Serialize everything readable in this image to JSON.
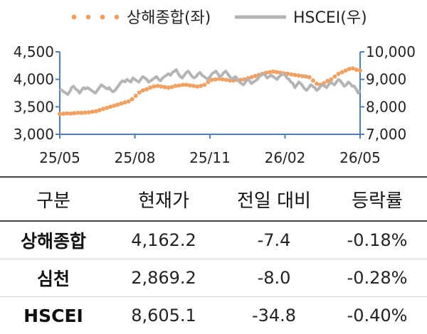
{
  "colors": {
    "shanghai": "#F0A060",
    "hscei": "#B4B4B4",
    "axis": "#4F7FB8",
    "text": "#222222"
  },
  "chart_data": {
    "type": "line",
    "legend_position": "top",
    "grid": false,
    "xticks": [
      "25/05",
      "25/08",
      "25/11",
      "26/02",
      "26/05"
    ],
    "y_left": {
      "ticks": [
        "3,000",
        "3,500",
        "4,000",
        "4,500"
      ],
      "range": [
        3000,
        4500
      ]
    },
    "y_right": {
      "ticks": [
        "7,000",
        "8,000",
        "9,000",
        "10,000"
      ],
      "range": [
        7000,
        10000
      ]
    },
    "series": [
      {
        "name": "상해종합(좌)",
        "axis": "left",
        "style": "dotted",
        "x_start": 0,
        "x_step": 1,
        "values": [
          3370,
          3375,
          3380,
          3378,
          3385,
          3390,
          3392,
          3395,
          3400,
          3410,
          3420,
          3440,
          3460,
          3480,
          3500,
          3520,
          3540,
          3560,
          3580,
          3600,
          3640,
          3700,
          3760,
          3800,
          3820,
          3850,
          3870,
          3880,
          3870,
          3860,
          3850,
          3860,
          3880,
          3890,
          3900,
          3900,
          3890,
          3880,
          3870,
          3880,
          3900,
          3950,
          3990,
          4000,
          4010,
          4000,
          3990,
          3980,
          3980,
          3990,
          3990,
          4000,
          4020,
          4040,
          4060,
          4080,
          4100,
          4120,
          4130,
          4140,
          4130,
          4120,
          4110,
          4100,
          4090,
          4080,
          4070,
          4060,
          4050,
          4040,
          3980,
          3920,
          3900,
          3930,
          3970,
          4000,
          4050,
          4100,
          4130,
          4160,
          4190,
          4200,
          4175,
          4162
        ]
      },
      {
        "name": "HSCEI(우)",
        "axis": "right",
        "style": "line",
        "x_start": 0,
        "x_step": 0.5,
        "values": [
          8650,
          8600,
          8550,
          8500,
          8450,
          8550,
          8700,
          8750,
          8650,
          8600,
          8500,
          8600,
          8700,
          8650,
          8700,
          8650,
          8600,
          8550,
          8500,
          8600,
          8700,
          8800,
          8750,
          8700,
          8650,
          8700,
          8600,
          8550,
          8600,
          8700,
          8800,
          8900,
          8950,
          8900,
          9000,
          8950,
          8900,
          9050,
          9000,
          8950,
          8900,
          9000,
          9100,
          9050,
          9000,
          8900,
          8950,
          9000,
          9050,
          9100,
          9000,
          8950,
          9050,
          9100,
          9150,
          9200,
          9150,
          9250,
          9300,
          9350,
          9200,
          9100,
          9050,
          9150,
          9250,
          9300,
          9200,
          9100,
          9050,
          9100,
          9200,
          9250,
          9150,
          9100,
          9050,
          9000,
          9100,
          9200,
          9250,
          9300,
          9200,
          9100,
          9150,
          9250,
          9300,
          9200,
          9100,
          9000,
          9050,
          9100,
          9000,
          8900,
          8850,
          8800,
          8900,
          9000,
          8950,
          8850,
          8900,
          8950,
          9000,
          9100,
          9150,
          9200,
          9150,
          9050,
          9100,
          9150,
          9100,
          9050,
          9000,
          9100,
          9150,
          9200,
          9150,
          9050,
          9000,
          8900,
          8850,
          8700,
          8800,
          8900,
          8850,
          8750,
          8650,
          8600,
          8700,
          8800,
          8750,
          8700,
          8600,
          8650,
          8750,
          8800,
          8750,
          8700,
          8800,
          8900,
          8850,
          8800,
          8900,
          9000,
          8950,
          8850,
          8750,
          8800,
          8900,
          8850,
          8750,
          8750,
          8650,
          8500,
          8605
        ]
      }
    ]
  },
  "table": {
    "headers": [
      "구분",
      "현재가",
      "전일 대비",
      "등락률"
    ],
    "rows": [
      [
        "상해종합",
        "4,162.2",
        "-7.4",
        "-0.18%"
      ],
      [
        "심천",
        "2,869.2",
        "-8.0",
        "-0.28%"
      ],
      [
        "HSCEI",
        "8,605.1",
        "-34.8",
        "-0.40%"
      ]
    ]
  }
}
